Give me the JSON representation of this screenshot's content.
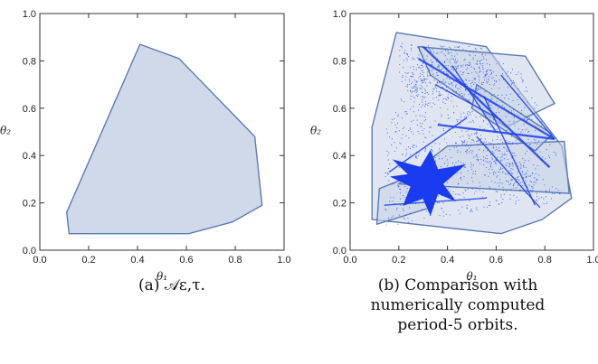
{
  "chart_data": [
    {
      "type": "area",
      "caption": "(a) 𝒜ε,τ.",
      "xlabel": "θ₁",
      "ylabel": "θ₂",
      "xlim": [
        0.0,
        1.0
      ],
      "ylim": [
        0.0,
        1.0
      ],
      "xticks": [
        "0.0",
        "0.2",
        "0.4",
        "0.6",
        "0.8",
        "1.0"
      ],
      "yticks": [
        "0.0",
        "0.2",
        "0.4",
        "0.6",
        "0.8",
        "1.0"
      ],
      "fill_color": "#cfd9ea",
      "edge_color": "#5b7bb5",
      "polygons": [
        [
          [
            0.12,
            0.07
          ],
          [
            0.61,
            0.07
          ],
          [
            0.79,
            0.12
          ],
          [
            0.91,
            0.19
          ],
          [
            0.88,
            0.48
          ],
          [
            0.57,
            0.81
          ],
          [
            0.41,
            0.87
          ],
          [
            0.11,
            0.16
          ]
        ]
      ]
    },
    {
      "type": "scatter",
      "caption": "(b) Comparison with numerically computed period-5 orbits.",
      "xlabel": "θ₁",
      "ylabel": "θ₂",
      "xlim": [
        0.0,
        1.0
      ],
      "ylim": [
        0.0,
        1.0
      ],
      "xticks": [
        "0.0",
        "0.2",
        "0.4",
        "0.6",
        "0.8",
        "1.0"
      ],
      "yticks": [
        "0.0",
        "0.2",
        "0.4",
        "0.6",
        "0.8",
        "1.0"
      ],
      "fill_color": "#c5d1e6",
      "edge_color": "#5b7bb5",
      "point_color": "#1a3cf0",
      "polygons": [
        [
          [
            0.09,
            0.13
          ],
          [
            0.62,
            0.07
          ],
          [
            0.79,
            0.13
          ],
          [
            0.91,
            0.22
          ],
          [
            0.87,
            0.44
          ],
          [
            0.66,
            0.72
          ],
          [
            0.56,
            0.86
          ],
          [
            0.19,
            0.92
          ],
          [
            0.09,
            0.52
          ]
        ],
        [
          [
            0.11,
            0.11
          ],
          [
            0.33,
            0.18
          ],
          [
            0.29,
            0.33
          ],
          [
            0.12,
            0.26
          ]
        ],
        [
          [
            0.2,
            0.28
          ],
          [
            0.9,
            0.24
          ],
          [
            0.88,
            0.46
          ],
          [
            0.4,
            0.44
          ]
        ],
        [
          [
            0.28,
            0.86
          ],
          [
            0.72,
            0.82
          ],
          [
            0.84,
            0.62
          ],
          [
            0.64,
            0.52
          ],
          [
            0.33,
            0.74
          ]
        ],
        [
          [
            0.52,
            0.7
          ],
          [
            0.83,
            0.49
          ],
          [
            0.76,
            0.42
          ],
          [
            0.5,
            0.6
          ]
        ]
      ],
      "dense_regions": [
        [
          [
            0.14,
            0.1
          ],
          [
            0.7,
            0.2
          ],
          [
            0.85,
            0.4
          ],
          [
            0.7,
            0.78
          ],
          [
            0.3,
            0.86
          ],
          [
            0.14,
            0.5
          ]
        ],
        [
          [
            0.2,
            0.88
          ],
          [
            0.55,
            0.86
          ],
          [
            0.6,
            0.7
          ],
          [
            0.3,
            0.6
          ],
          [
            0.2,
            0.7
          ]
        ],
        [
          [
            0.45,
            0.55
          ],
          [
            0.88,
            0.24
          ],
          [
            0.8,
            0.18
          ],
          [
            0.42,
            0.45
          ]
        ]
      ],
      "lines": [
        [
          [
            0.28,
            0.81
          ],
          [
            0.84,
            0.47
          ]
        ],
        [
          [
            0.3,
            0.86
          ],
          [
            0.82,
            0.35
          ]
        ],
        [
          [
            0.36,
            0.53
          ],
          [
            0.84,
            0.47
          ]
        ],
        [
          [
            0.42,
            0.78
          ],
          [
            0.6,
            0.5
          ]
        ],
        [
          [
            0.35,
            0.7
          ],
          [
            0.62,
            0.55
          ]
        ],
        [
          [
            0.55,
            0.65
          ],
          [
            0.76,
            0.19
          ]
        ],
        [
          [
            0.62,
            0.74
          ],
          [
            0.84,
            0.47
          ]
        ],
        [
          [
            0.16,
            0.33
          ],
          [
            0.48,
            0.56
          ]
        ],
        [
          [
            0.14,
            0.19
          ],
          [
            0.56,
            0.22
          ]
        ],
        [
          [
            0.52,
            0.48
          ],
          [
            0.78,
            0.18
          ]
        ]
      ],
      "star_polygon": [
        [
          0.17,
          0.31
        ],
        [
          0.25,
          0.27
        ],
        [
          0.22,
          0.19
        ],
        [
          0.3,
          0.22
        ],
        [
          0.33,
          0.15
        ],
        [
          0.36,
          0.24
        ],
        [
          0.43,
          0.21
        ],
        [
          0.38,
          0.28
        ],
        [
          0.47,
          0.36
        ],
        [
          0.36,
          0.34
        ],
        [
          0.33,
          0.42
        ],
        [
          0.29,
          0.35
        ],
        [
          0.18,
          0.38
        ],
        [
          0.24,
          0.32
        ]
      ]
    }
  ]
}
